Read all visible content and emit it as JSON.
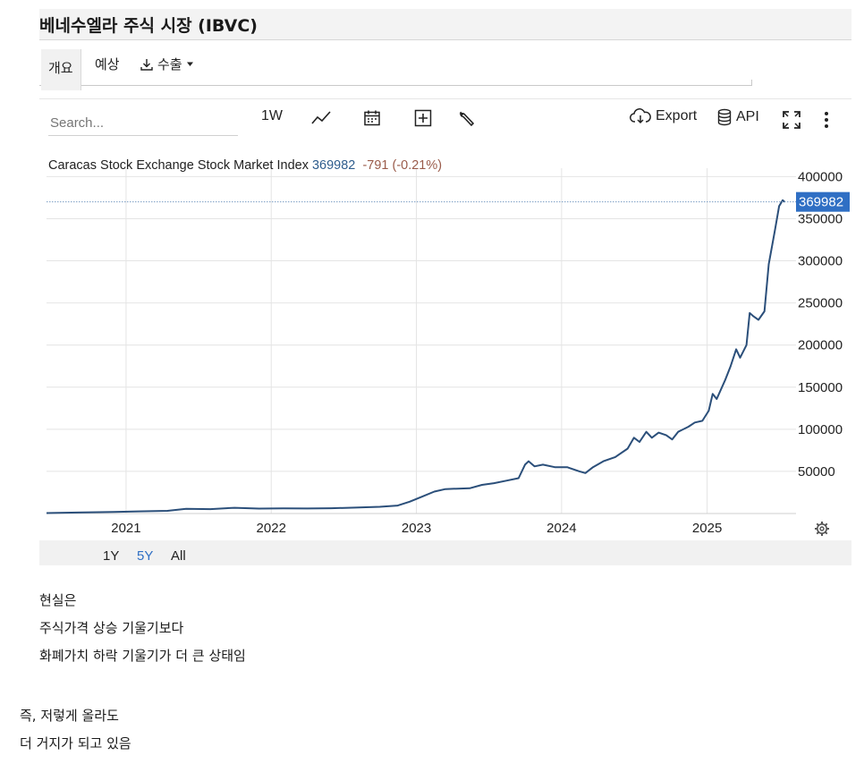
{
  "page_title": "베네수엘라 주식 시장 (IBVC)",
  "tabs": [
    {
      "label": "개요"
    },
    {
      "label": "예상"
    },
    {
      "label": "수출"
    }
  ],
  "toolbar": {
    "search_placeholder": "Search...",
    "interval_label": "1W",
    "export_label": "Export",
    "api_label": "API",
    "icons": [
      "line-chart-icon",
      "calendar-icon",
      "plus-box-icon",
      "wrench-icon",
      "cloud-download-icon",
      "database-icon",
      "fullscreen-icon",
      "more-vertical-icon"
    ]
  },
  "legend": {
    "name": "Caracas Stock Exchange Stock Market Index",
    "value": "369982",
    "change": "-791 (-0.21%)"
  },
  "range_buttons": [
    {
      "label": "1Y",
      "active": false
    },
    {
      "label": "5Y",
      "active": true
    },
    {
      "label": "All",
      "active": false
    }
  ],
  "colors": {
    "line": "#2b4f7a",
    "accent": "#2f6fc4",
    "active_range": "#2f6fc4",
    "change_negative": "#9a5b4a"
  },
  "chart_data": {
    "type": "line",
    "title": "",
    "xlabel": "",
    "ylabel": "",
    "x_tick_labels": [
      "2021",
      "2022",
      "2023",
      "2024",
      "2025"
    ],
    "y_tick_labels": [
      "50000",
      "100000",
      "150000",
      "200000",
      "250000",
      "300000",
      "350000",
      "400000"
    ],
    "ylim": [
      0,
      410000
    ],
    "xlim": [
      "2020-06-15",
      "2025-07-30"
    ],
    "current_value_label": "369982",
    "grid": true,
    "series": [
      {
        "points": [
          [
            "2020-06-15",
            500
          ],
          [
            "2020-09-01",
            1200
          ],
          [
            "2020-12-01",
            1800
          ],
          [
            "2021-02-01",
            2500
          ],
          [
            "2021-04-15",
            3200
          ],
          [
            "2021-06-01",
            5500
          ],
          [
            "2021-08-01",
            5200
          ],
          [
            "2021-10-01",
            6800
          ],
          [
            "2021-12-01",
            5800
          ],
          [
            "2022-02-01",
            6200
          ],
          [
            "2022-04-01",
            6000
          ],
          [
            "2022-06-01",
            6300
          ],
          [
            "2022-08-01",
            7000
          ],
          [
            "2022-10-01",
            8000
          ],
          [
            "2022-11-15",
            9500
          ],
          [
            "2022-12-15",
            14000
          ],
          [
            "2023-01-15",
            20000
          ],
          [
            "2023-02-15",
            26000
          ],
          [
            "2023-03-15",
            29000
          ],
          [
            "2023-04-15",
            29500
          ],
          [
            "2023-05-15",
            30000
          ],
          [
            "2023-06-15",
            34000
          ],
          [
            "2023-07-15",
            36000
          ],
          [
            "2023-08-15",
            39000
          ],
          [
            "2023-09-15",
            42000
          ],
          [
            "2023-10-01",
            58000
          ],
          [
            "2023-10-10",
            62000
          ],
          [
            "2023-10-25",
            56000
          ],
          [
            "2023-11-15",
            58000
          ],
          [
            "2023-12-15",
            55000
          ],
          [
            "2024-01-15",
            55000
          ],
          [
            "2024-02-15",
            50000
          ],
          [
            "2024-03-01",
            48000
          ],
          [
            "2024-03-20",
            55000
          ],
          [
            "2024-04-15",
            62000
          ],
          [
            "2024-05-15",
            67000
          ],
          [
            "2024-06-15",
            77000
          ],
          [
            "2024-07-01",
            90000
          ],
          [
            "2024-07-15",
            85000
          ],
          [
            "2024-08-01",
            97000
          ],
          [
            "2024-08-15",
            90000
          ],
          [
            "2024-09-01",
            96000
          ],
          [
            "2024-09-20",
            93000
          ],
          [
            "2024-10-05",
            88000
          ],
          [
            "2024-10-20",
            97000
          ],
          [
            "2024-11-15",
            103000
          ],
          [
            "2024-12-01",
            108000
          ],
          [
            "2024-12-20",
            110000
          ],
          [
            "2025-01-05",
            122000
          ],
          [
            "2025-01-15",
            142000
          ],
          [
            "2025-01-25",
            136000
          ],
          [
            "2025-02-15",
            158000
          ],
          [
            "2025-03-01",
            175000
          ],
          [
            "2025-03-15",
            195000
          ],
          [
            "2025-03-25",
            185000
          ],
          [
            "2025-04-10",
            200000
          ],
          [
            "2025-04-18",
            238000
          ],
          [
            "2025-04-28",
            234000
          ],
          [
            "2025-05-10",
            230000
          ],
          [
            "2025-05-25",
            240000
          ],
          [
            "2025-06-05",
            296000
          ],
          [
            "2025-06-20",
            335000
          ],
          [
            "2025-07-01",
            365000
          ],
          [
            "2025-07-10",
            372000
          ],
          [
            "2025-07-15",
            369982
          ]
        ]
      }
    ]
  },
  "caption": [
    "현실은",
    "주식가격 상승 기울기보다",
    "화폐가치 하락 기울기가 더 큰 상태임",
    "즉, 저렇게 올라도",
    "더 거지가 되고 있음"
  ]
}
